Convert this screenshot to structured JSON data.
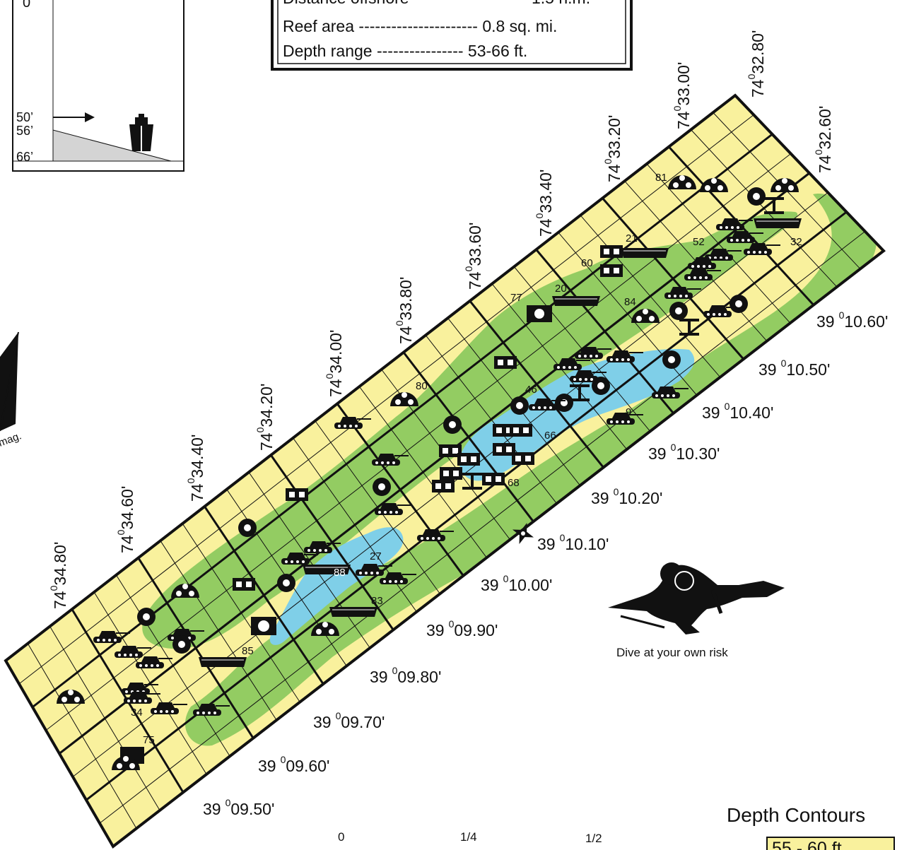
{
  "info_box": {
    "rows": [
      {
        "label": "Distance offshore",
        "dashes": " ",
        "value": "1.5 n.m."
      },
      {
        "label": "Reef area",
        "dashes": " ---------------------- ",
        "value": "0.8 sq. mi."
      },
      {
        "label": "Depth range",
        "dashes": " ---------------- ",
        "value": "53-66 ft."
      }
    ]
  },
  "profile_inset": {
    "depth_marks": [
      "50’",
      "56’",
      "66’"
    ],
    "top_mark": "0"
  },
  "longitude_labels": [
    {
      "deg": "74",
      "min": "0",
      "sec": "32.60'"
    },
    {
      "deg": "74",
      "min": "0",
      "sec": "32.80'"
    },
    {
      "deg": "74",
      "min": "0",
      "sec": "33.00'"
    },
    {
      "deg": "74",
      "min": "0",
      "sec": "33.20'"
    },
    {
      "deg": "74",
      "min": "0",
      "sec": "33.40'"
    },
    {
      "deg": "74",
      "min": "0",
      "sec": "33.60'"
    },
    {
      "deg": "74",
      "min": "0",
      "sec": "33.80'"
    },
    {
      "deg": "74",
      "min": "0",
      "sec": "34.00'"
    },
    {
      "deg": "74",
      "min": "0",
      "sec": "34.20'"
    },
    {
      "deg": "74",
      "min": "0",
      "sec": "34.40'"
    },
    {
      "deg": "74",
      "min": "0",
      "sec": "34.60'"
    },
    {
      "deg": "74",
      "min": "0",
      "sec": "34.80'"
    }
  ],
  "latitude_labels": [
    {
      "deg": "39",
      "min": "0",
      "sec": "10.60'"
    },
    {
      "deg": "39",
      "min": "0",
      "sec": "10.50'"
    },
    {
      "deg": "39",
      "min": "0",
      "sec": "10.40'"
    },
    {
      "deg": "39",
      "min": "0",
      "sec": "10.30'"
    },
    {
      "deg": "39",
      "min": "0",
      "sec": "10.20'"
    },
    {
      "deg": "39",
      "min": "0",
      "sec": "10.10'"
    },
    {
      "deg": "39",
      "min": "0",
      "sec": "10.00'"
    },
    {
      "deg": "39",
      "min": "0",
      "sec": "09.90'"
    },
    {
      "deg": "39",
      "min": "0",
      "sec": "09.80'"
    },
    {
      "deg": "39",
      "min": "0",
      "sec": "09.70'"
    },
    {
      "deg": "39",
      "min": "0",
      "sec": "09.60'"
    },
    {
      "deg": "39",
      "min": "0",
      "sec": "09.50'"
    }
  ],
  "site_numbers": [
    "81",
    "21",
    "52",
    "32",
    "60",
    "20",
    "77",
    "84",
    "80",
    "46",
    "66",
    "68",
    "27",
    "88",
    "83",
    "85",
    "34",
    "75",
    "9"
  ],
  "compass_label": "mag.",
  "diver_caption": "Dive at your own risk",
  "scale_bar": {
    "labels": [
      "0",
      "1/4",
      "1/2"
    ]
  },
  "legend": {
    "title": "Depth Contours",
    "first_entry": "55 - 60 ft."
  },
  "colors": {
    "shallow": "#f9f19d",
    "mid": "#93cc62",
    "deep": "#7fcfe8",
    "ink": "#111111",
    "inset_fill": "#d4d4d4"
  },
  "icons": [
    "tank-icon",
    "barge-icon",
    "reef-ball-icon",
    "tire-unit-icon",
    "concrete-block-icon",
    "pipe-icon",
    "ship-icon",
    "diver-icon",
    "compass-star-icon",
    "north-arrow-icon"
  ]
}
